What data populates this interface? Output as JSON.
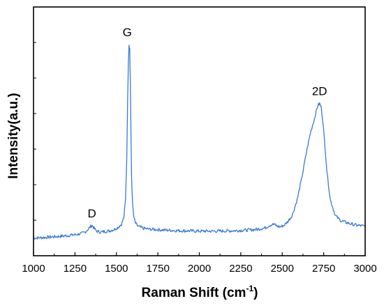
{
  "chart_data": {
    "type": "line",
    "xlabel": "Raman Shift (cm",
    "xlabel_superscript": "-1",
    "xlabel_suffix": ")",
    "ylabel": "Intensity(a.u.)",
    "xlim": [
      1000,
      3000
    ],
    "ylim": [
      0,
      100
    ],
    "y_ticks_labeled": false,
    "x_ticks": [
      "1000",
      "1250",
      "1500",
      "1750",
      "2000",
      "2250",
      "2500",
      "2750",
      "3000"
    ],
    "grid": false,
    "line_color": "#3a78d8",
    "series": [
      {
        "x": [
          1000,
          1050,
          1100,
          1150,
          1200,
          1250,
          1290,
          1310,
          1330,
          1345,
          1355,
          1365,
          1380,
          1400,
          1430,
          1460,
          1490,
          1510,
          1530,
          1545,
          1555,
          1562,
          1568,
          1572,
          1576,
          1580,
          1584,
          1588,
          1592,
          1598,
          1605,
          1615,
          1630,
          1660,
          1700,
          1800,
          1900,
          2000,
          2100,
          2200,
          2300,
          2350,
          2400,
          2420,
          2440,
          2455,
          2470,
          2490,
          2510,
          2530,
          2560,
          2590,
          2620,
          2650,
          2670,
          2690,
          2705,
          2715,
          2725,
          2735,
          2745,
          2755,
          2770,
          2790,
          2820,
          2850,
          2900,
          2950,
          3000
        ],
        "y": [
          0.5,
          0.7,
          1.0,
          1.3,
          1.7,
          2.2,
          2.8,
          3.5,
          5.0,
          6.5,
          6.8,
          5.5,
          4.0,
          3.6,
          3.8,
          4.2,
          5.0,
          6.0,
          7.5,
          11.0,
          20.0,
          40.0,
          72.0,
          90.0,
          99.0,
          97.0,
          80.0,
          50.0,
          30.0,
          17.0,
          11.0,
          8.0,
          6.5,
          5.5,
          5.0,
          4.5,
          4.2,
          4.0,
          4.0,
          4.2,
          4.6,
          4.9,
          5.8,
          6.8,
          7.5,
          7.3,
          6.5,
          6.2,
          7.0,
          8.5,
          12.0,
          20.0,
          32.0,
          46.0,
          54.0,
          60.0,
          65.0,
          68.0,
          69.0,
          67.0,
          60.0,
          50.0,
          34.0,
          20.0,
          12.0,
          9.5,
          8.0,
          7.0,
          6.5
        ]
      }
    ],
    "annotations": [
      {
        "text": "D",
        "x": 1352,
        "y": 6.8
      },
      {
        "text": "G",
        "x": 1578,
        "y": 99.0
      },
      {
        "text": "2D",
        "x": 2725,
        "y": 69.0
      }
    ]
  }
}
